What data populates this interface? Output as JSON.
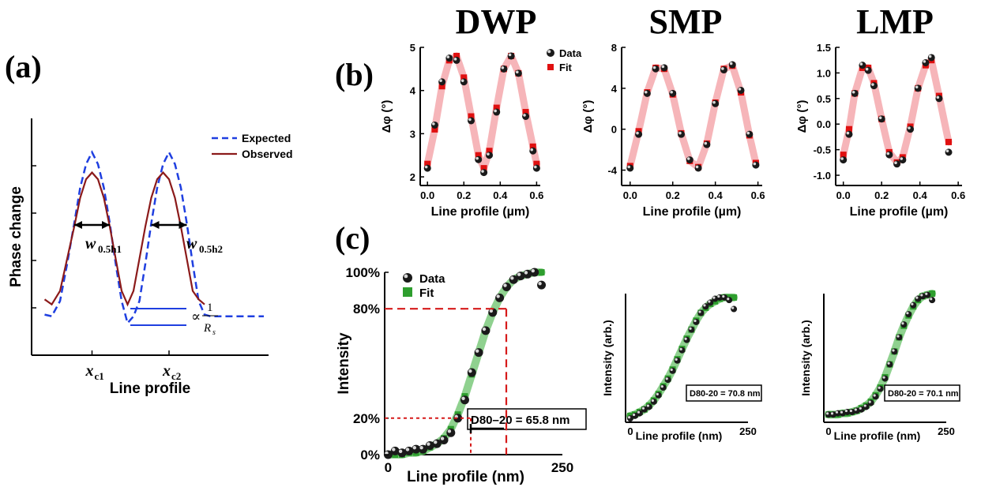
{
  "colors": {
    "expected": "#1f3fe0",
    "observed": "#8b1a1a",
    "fit_red": "#e01010",
    "fit_band_red": "#f4a3a8",
    "fit_green": "#2e9e2e",
    "fit_band_green": "#7bc97b",
    "guide_red": "#d61a1a"
  },
  "panels": {
    "a": {
      "label": "(a)",
      "xlabel": "Line profile",
      "ylabel": "Phase change",
      "xticks": [
        "x",
        "x"
      ],
      "xtick_subs": [
        "c1",
        "c2"
      ],
      "w_labels": [
        "w",
        "w"
      ],
      "w_subs": [
        "0.5h1",
        "0.5h2"
      ],
      "rs_prop": "∝",
      "rs_num": "1",
      "rs_den": "R",
      "rs_den_sub": "s"
    },
    "b": {
      "label": "(b)"
    },
    "c": {
      "label": "(c)"
    }
  },
  "chart_data": [
    {
      "id": "a",
      "type": "line",
      "title": "",
      "xlabel": "Line profile",
      "ylabel": "Phase change",
      "legend": "top-right",
      "series": [
        {
          "name": "Expected",
          "x": [
            0.11,
            0.17,
            0.24,
            0.3,
            0.36,
            0.41,
            0.46,
            0.51,
            0.56,
            0.61,
            0.66,
            0.71,
            0.76,
            0.81,
            0.86,
            0.91,
            0.96,
            1.01,
            1.06,
            1.11,
            1.16,
            1.21,
            1.26,
            1.31,
            1.36,
            1.41,
            1.46,
            1.51,
            1.56,
            1.61,
            1.66,
            1.71,
            1.76,
            1.81,
            1.86,
            1.91,
            1.96
          ],
          "y": [
            0.04,
            0.03,
            0.12,
            0.34,
            0.58,
            0.79,
            0.93,
            1.0,
            0.93,
            0.79,
            0.58,
            0.34,
            0.12,
            -0.01,
            0.03,
            0.12,
            0.34,
            0.58,
            0.79,
            0.93,
            1.0,
            0.93,
            0.79,
            0.58,
            0.34,
            0.12,
            0.04,
            0.03,
            0.03,
            0.03,
            0.03,
            0.03,
            0.03,
            0.03,
            0.03,
            0.03,
            0.03
          ]
        },
        {
          "name": "Observed",
          "x": [
            0.11,
            0.17,
            0.24,
            0.3,
            0.36,
            0.41,
            0.46,
            0.51,
            0.56,
            0.61,
            0.66,
            0.71,
            0.76,
            0.81,
            0.86,
            0.91,
            0.96,
            1.01,
            1.06,
            1.11,
            1.16,
            1.21,
            1.26,
            1.31,
            1.36,
            1.41,
            1.46
          ],
          "y": [
            0.13,
            0.1,
            0.18,
            0.37,
            0.56,
            0.73,
            0.84,
            0.88,
            0.84,
            0.73,
            0.56,
            0.37,
            0.18,
            0.1,
            0.18,
            0.37,
            0.56,
            0.73,
            0.84,
            0.88,
            0.84,
            0.73,
            0.56,
            0.37,
            0.18,
            0.13,
            0.1
          ]
        }
      ]
    },
    {
      "id": "b-dwp",
      "type": "scatter",
      "title": "DWP",
      "xlabel": "Line profile (µm)",
      "ylabel": "Δφ (°)",
      "xlim": [
        -0.04,
        0.62
      ],
      "ylim": [
        1.8,
        5.0
      ],
      "xticks": [
        "0.0",
        "0.2",
        "0.4",
        "0.6"
      ],
      "yticks": [
        "2",
        "3",
        "4",
        "5"
      ],
      "legend": "top-right",
      "series": [
        {
          "name": "Data",
          "x": [
            0.0,
            0.04,
            0.08,
            0.12,
            0.16,
            0.2,
            0.24,
            0.28,
            0.31,
            0.34,
            0.38,
            0.42,
            0.46,
            0.5,
            0.54,
            0.58,
            0.6
          ],
          "y": [
            2.2,
            3.2,
            4.2,
            4.75,
            4.7,
            4.2,
            3.3,
            2.4,
            2.1,
            2.5,
            3.5,
            4.5,
            4.8,
            4.4,
            3.4,
            2.6,
            2.2
          ]
        },
        {
          "name": "Fit",
          "x": [
            0.0,
            0.04,
            0.08,
            0.12,
            0.16,
            0.2,
            0.24,
            0.28,
            0.31,
            0.34,
            0.38,
            0.42,
            0.46,
            0.5,
            0.54,
            0.58,
            0.6
          ],
          "y": [
            2.3,
            3.1,
            4.1,
            4.7,
            4.8,
            4.3,
            3.4,
            2.5,
            2.2,
            2.6,
            3.6,
            4.5,
            4.8,
            4.4,
            3.5,
            2.7,
            2.3
          ]
        }
      ]
    },
    {
      "id": "b-smp",
      "type": "scatter",
      "title": "SMP",
      "xlabel": "Line profile (µm)",
      "ylabel": "Δφ (°)",
      "xlim": [
        -0.04,
        0.62
      ],
      "ylim": [
        -5.5,
        8.0
      ],
      "xticks": [
        "0.0",
        "0.2",
        "0.4",
        "0.6"
      ],
      "yticks": [
        "-4",
        "0",
        "4",
        "8"
      ],
      "series": [
        {
          "name": "Data",
          "x": [
            0.0,
            0.04,
            0.08,
            0.12,
            0.16,
            0.2,
            0.24,
            0.28,
            0.32,
            0.36,
            0.4,
            0.44,
            0.48,
            0.52,
            0.56,
            0.59
          ],
          "y": [
            -3.8,
            -0.5,
            3.5,
            5.9,
            6.0,
            3.5,
            -0.5,
            -3.0,
            -3.8,
            -1.5,
            2.5,
            5.8,
            6.3,
            3.8,
            -0.5,
            -3.5
          ]
        },
        {
          "name": "Fit",
          "x": [
            0.0,
            0.04,
            0.08,
            0.12,
            0.16,
            0.2,
            0.24,
            0.28,
            0.32,
            0.36,
            0.4,
            0.44,
            0.48,
            0.52,
            0.56,
            0.59
          ],
          "y": [
            -3.6,
            -0.2,
            3.6,
            6.0,
            5.9,
            3.4,
            -0.4,
            -3.1,
            -3.7,
            -1.4,
            2.6,
            5.9,
            6.2,
            3.6,
            -0.6,
            -3.3
          ]
        }
      ]
    },
    {
      "id": "b-lmp",
      "type": "scatter",
      "title": "LMP",
      "xlabel": "Line profile (µm)",
      "ylabel": "Δφ (°)",
      "xlim": [
        -0.04,
        0.62
      ],
      "ylim": [
        -1.2,
        1.5
      ],
      "xticks": [
        "0.0",
        "0.2",
        "0.4",
        "0.6"
      ],
      "yticks": [
        "-1.0",
        "-0.5",
        "0.0",
        "0.5",
        "1.0",
        "1.5"
      ],
      "series": [
        {
          "name": "Data",
          "x": [
            0.0,
            0.03,
            0.06,
            0.1,
            0.13,
            0.16,
            0.2,
            0.24,
            0.28,
            0.31,
            0.35,
            0.39,
            0.43,
            0.46,
            0.5,
            0.55
          ],
          "y": [
            -0.7,
            -0.2,
            0.6,
            1.15,
            1.05,
            0.75,
            0.1,
            -0.6,
            -0.78,
            -0.7,
            -0.1,
            0.7,
            1.2,
            1.3,
            0.5,
            -0.55
          ]
        },
        {
          "name": "Fit",
          "x": [
            0.0,
            0.03,
            0.06,
            0.1,
            0.13,
            0.16,
            0.2,
            0.24,
            0.28,
            0.31,
            0.35,
            0.39,
            0.43,
            0.46,
            0.5,
            0.55
          ],
          "y": [
            -0.6,
            -0.1,
            0.6,
            1.1,
            1.1,
            0.8,
            0.1,
            -0.55,
            -0.75,
            -0.65,
            -0.05,
            0.7,
            1.15,
            1.25,
            0.55,
            -0.35
          ]
        }
      ]
    },
    {
      "id": "c-dwp",
      "type": "scatter",
      "title": "",
      "xlabel": "Line profile (nm)",
      "ylabel": "Intensity",
      "xlim": [
        -5,
        250
      ],
      "ylim": [
        0,
        1.0
      ],
      "xticks": [
        "0",
        "250"
      ],
      "yticks": [
        "0%",
        "20%",
        "80%",
        "100%"
      ],
      "annotation": "D80–20 = 65.8 nm",
      "legend": "top-left",
      "series": [
        {
          "name": "Data",
          "x": [
            0,
            10,
            20,
            30,
            40,
            50,
            60,
            70,
            80,
            90,
            100,
            110,
            120,
            130,
            140,
            150,
            160,
            170,
            180,
            190,
            200,
            210,
            220
          ],
          "y": [
            0.0,
            0.02,
            0.01,
            0.02,
            0.03,
            0.03,
            0.05,
            0.06,
            0.08,
            0.12,
            0.2,
            0.3,
            0.45,
            0.56,
            0.68,
            0.78,
            0.86,
            0.92,
            0.96,
            0.98,
            0.99,
            1.0,
            0.93
          ]
        },
        {
          "name": "Fit",
          "x": [
            0,
            10,
            20,
            30,
            40,
            50,
            60,
            70,
            80,
            90,
            100,
            110,
            120,
            130,
            140,
            150,
            160,
            170,
            180,
            190,
            200,
            210,
            220
          ],
          "y": [
            0.0,
            0.0,
            0.0,
            0.01,
            0.01,
            0.02,
            0.04,
            0.06,
            0.09,
            0.14,
            0.22,
            0.32,
            0.44,
            0.56,
            0.68,
            0.78,
            0.86,
            0.92,
            0.96,
            0.98,
            0.99,
            1.0,
            1.0
          ]
        }
      ]
    },
    {
      "id": "c-smp",
      "type": "scatter",
      "title": "",
      "xlabel": "Line profile (nm)",
      "ylabel": "Intensity (arb.)",
      "xlim": [
        -10,
        250
      ],
      "ylim": [
        0,
        1.0
      ],
      "xticks": [
        "0",
        "250"
      ],
      "yticks": [],
      "annotation": "D80-20 = 70.8 nm",
      "series": [
        {
          "name": "Data",
          "x": [
            0,
            10,
            20,
            30,
            40,
            50,
            60,
            70,
            80,
            90,
            100,
            110,
            120,
            130,
            140,
            150,
            160,
            170,
            180,
            190,
            200,
            210,
            220
          ],
          "y": [
            0.03,
            0.05,
            0.07,
            0.1,
            0.12,
            0.16,
            0.21,
            0.27,
            0.33,
            0.4,
            0.48,
            0.56,
            0.64,
            0.72,
            0.78,
            0.85,
            0.9,
            0.93,
            0.96,
            0.97,
            0.97,
            0.95,
            0.88
          ]
        },
        {
          "name": "Fit",
          "x": [
            0,
            10,
            20,
            30,
            40,
            50,
            60,
            70,
            80,
            90,
            100,
            110,
            120,
            130,
            140,
            150,
            160,
            170,
            180,
            190,
            200,
            210,
            220
          ],
          "y": [
            0.05,
            0.06,
            0.08,
            0.1,
            0.13,
            0.17,
            0.22,
            0.28,
            0.34,
            0.41,
            0.49,
            0.57,
            0.65,
            0.72,
            0.79,
            0.85,
            0.89,
            0.92,
            0.94,
            0.96,
            0.97,
            0.97,
            0.97
          ]
        }
      ]
    },
    {
      "id": "c-lmp",
      "type": "scatter",
      "title": "",
      "xlabel": "Line profile (nm)",
      "ylabel": "Intensity (arb.)",
      "xlim": [
        -10,
        250
      ],
      "ylim": [
        0,
        1.0
      ],
      "xticks": [
        "0",
        "250"
      ],
      "yticks": [],
      "annotation": "D80-20 = 70.1 nm",
      "series": [
        {
          "name": "Data",
          "x": [
            0,
            10,
            20,
            30,
            40,
            50,
            60,
            70,
            80,
            90,
            100,
            110,
            120,
            130,
            140,
            150,
            160,
            170,
            180,
            190,
            200,
            210,
            220
          ],
          "y": [
            0.06,
            0.06,
            0.07,
            0.07,
            0.08,
            0.08,
            0.09,
            0.1,
            0.12,
            0.15,
            0.2,
            0.26,
            0.34,
            0.45,
            0.55,
            0.66,
            0.76,
            0.84,
            0.91,
            0.96,
            0.98,
            0.99,
            0.95
          ]
        },
        {
          "name": "Fit",
          "x": [
            0,
            10,
            20,
            30,
            40,
            50,
            60,
            70,
            80,
            90,
            100,
            110,
            120,
            130,
            140,
            150,
            160,
            170,
            180,
            190,
            200,
            210,
            220
          ],
          "y": [
            0.06,
            0.06,
            0.06,
            0.07,
            0.07,
            0.08,
            0.09,
            0.11,
            0.13,
            0.16,
            0.21,
            0.27,
            0.35,
            0.45,
            0.55,
            0.66,
            0.75,
            0.83,
            0.9,
            0.95,
            0.98,
            0.99,
            1.0
          ]
        }
      ]
    }
  ]
}
